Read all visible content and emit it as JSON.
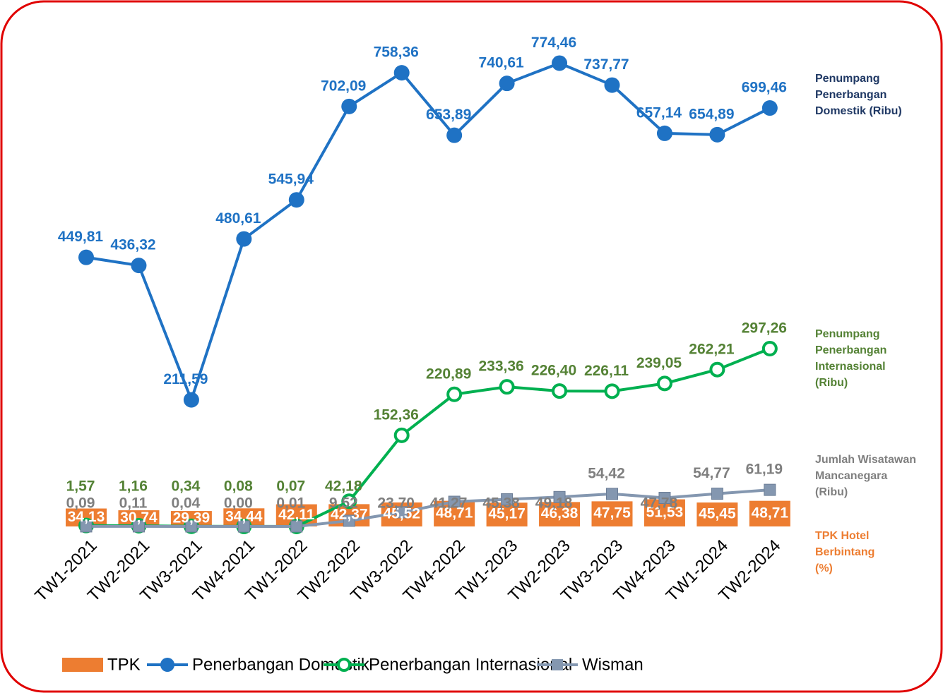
{
  "chart_data": {
    "type": "combo",
    "categories": [
      "TW1-2021",
      "TW2-2021",
      "TW3-2021",
      "TW4-2021",
      "TW1-2022",
      "TW2-2022",
      "TW3-2022",
      "TW4-2022",
      "TW1-2023",
      "TW2-2023",
      "TW3-2023",
      "TW4-2023",
      "TW1-2024",
      "TW2-2024"
    ],
    "ylim": [
      0,
      880
    ],
    "y2lim": [
      0,
      1000
    ],
    "series": [
      {
        "name": "TPK",
        "type": "bar",
        "axis": "y2",
        "color": "#ed7d31",
        "values": [
          34.13,
          30.74,
          29.39,
          34.44,
          42.11,
          42.37,
          45.52,
          48.71,
          45.17,
          46.38,
          47.75,
          51.53,
          45.45,
          48.71
        ],
        "value_labels": [
          "34,13",
          "30,74",
          "29,39",
          "34,44",
          "42,11",
          "42,37",
          "45,52",
          "48,71",
          "45,17",
          "46,38",
          "47,75",
          "51,53",
          "45,45",
          "48,71"
        ]
      },
      {
        "name": "Penerbangan Domestik",
        "type": "line",
        "marker": "circle",
        "color": "#1f72c4",
        "values": [
          449.81,
          436.32,
          211.59,
          480.61,
          545.94,
          702.09,
          758.36,
          653.89,
          740.61,
          774.46,
          737.77,
          657.14,
          654.89,
          699.46
        ],
        "value_labels": [
          "449,81",
          "436,32",
          "211,59",
          "480,61",
          "545,94",
          "702,09",
          "758,36",
          "653,89",
          "740,61",
          "774,46",
          "737,77",
          "657,14",
          "654,89",
          "699,46"
        ]
      },
      {
        "name": "Penerbangan Internasional",
        "type": "line",
        "marker": "ring",
        "color": "#00b050",
        "values": [
          1.57,
          1.16,
          0.34,
          0.08,
          0.07,
          42.18,
          152.36,
          220.89,
          233.36,
          226.4,
          226.11,
          239.05,
          262.21,
          297.26
        ],
        "value_labels": [
          "1,57",
          "1,16",
          "0,34",
          "0,08",
          "0,07",
          "42,18",
          "152,36",
          "220,89",
          "233,36",
          "226,40",
          "226,11",
          "239,05",
          "262,21",
          "297,26"
        ]
      },
      {
        "name": "Wisman",
        "type": "line",
        "marker": "square",
        "color": "#8497b0",
        "values": [
          0.09,
          0.11,
          0.04,
          0.0,
          0.01,
          9.52,
          23.7,
          41.27,
          45.38,
          49.18,
          54.42,
          47.78,
          54.77,
          61.19
        ],
        "value_labels": [
          "0,09",
          "0,11",
          "0,04",
          "0,00",
          "0,01",
          "9,52",
          "23,70",
          "41,27",
          "45,38",
          "49,18",
          "54,42",
          "47,78",
          "54,77",
          "61,19"
        ]
      }
    ],
    "annotations": [
      {
        "text": [
          "Penumpang",
          "Penerbangan",
          "Domestik (Ribu)"
        ],
        "color": "#1f3864"
      },
      {
        "text": [
          "Penumpang",
          "Penerbangan",
          "Internasional",
          "(Ribu)"
        ],
        "color": "#548235"
      },
      {
        "text": [
          "Jumlah Wisatawan",
          "Mancanegara",
          "(Ribu)"
        ],
        "color": "#7f7f7f"
      },
      {
        "text": [
          "TPK Hotel",
          "Berbintang",
          "(%)"
        ],
        "color": "#ed7d31"
      }
    ]
  }
}
